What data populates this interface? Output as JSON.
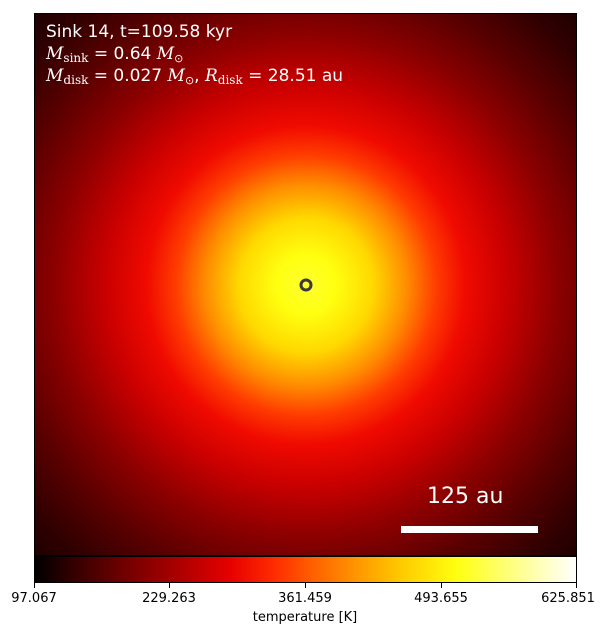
{
  "panel": {
    "title": "Sink 14, t=109.58 kyr",
    "msink": {
      "symbol": "M",
      "subscript": "sink",
      "value": "= 0.64",
      "unit": "M",
      "unit_sub": "⊙"
    },
    "mdisk": {
      "symbol": "M",
      "subscript": "disk",
      "value": "= 0.027",
      "unit": "M",
      "unit_sub": "⊙",
      "sep": ",",
      "r_symbol": "R",
      "r_subscript": "disk",
      "r_value": "= 28.51 au"
    },
    "scalebar_label": "125 au"
  },
  "colorbar": {
    "label": "temperature [K]",
    "ticks": [
      "97.067",
      "229.263",
      "361.459",
      "493.655",
      "625.851"
    ],
    "colormap": "hot"
  },
  "colors": {
    "core": "#ffff40",
    "mid": "#ff2000",
    "outer": "#500000",
    "marker": "#3a3a3a"
  }
}
